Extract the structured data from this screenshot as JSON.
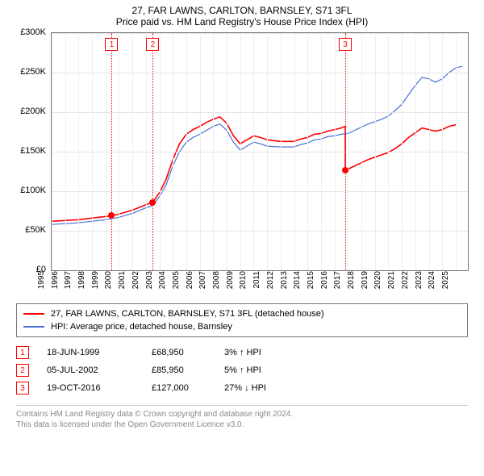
{
  "title_line1": "27, FAR LAWNS, CARLTON, BARNSLEY, S71 3FL",
  "title_line2": "Price paid vs. HM Land Registry's House Price Index (HPI)",
  "chart": {
    "type": "line",
    "background_color": "#ffffff",
    "grid_color": "#e5e5e5",
    "axis_color": "#777777",
    "x_range": [
      1995,
      2025.9
    ],
    "y_range": [
      0,
      300
    ],
    "y_ticks": [
      0,
      50,
      100,
      150,
      200,
      250,
      300
    ],
    "y_tick_labels": [
      "£0",
      "£50K",
      "£100K",
      "£150K",
      "£200K",
      "£250K",
      "£300K"
    ],
    "x_ticks": [
      1995,
      1996,
      1997,
      1998,
      1999,
      2000,
      2001,
      2002,
      2003,
      2004,
      2005,
      2006,
      2007,
      2008,
      2009,
      2010,
      2011,
      2012,
      2013,
      2014,
      2015,
      2016,
      2017,
      2018,
      2019,
      2020,
      2021,
      2022,
      2023,
      2024,
      2025
    ],
    "series": [
      {
        "name": "property",
        "label": "27, FAR LAWNS, CARLTON, BARNSLEY, S71 3FL (detached house)",
        "color": "#ff0000",
        "width": 1.6,
        "data": [
          [
            1995,
            62
          ],
          [
            1996,
            63
          ],
          [
            1997,
            64
          ],
          [
            1998,
            66
          ],
          [
            1999,
            68
          ],
          [
            1999.5,
            68.95
          ],
          [
            2000,
            71
          ],
          [
            2001,
            76
          ],
          [
            2002,
            83
          ],
          [
            2002.5,
            85.95
          ],
          [
            2003,
            98
          ],
          [
            2003.5,
            115
          ],
          [
            2004,
            140
          ],
          [
            2004.5,
            160
          ],
          [
            2005,
            172
          ],
          [
            2005.5,
            178
          ],
          [
            2006,
            182
          ],
          [
            2006.5,
            187
          ],
          [
            2007,
            191
          ],
          [
            2007.5,
            194
          ],
          [
            2008,
            186
          ],
          [
            2008.5,
            170
          ],
          [
            2009,
            160
          ],
          [
            2009.5,
            165
          ],
          [
            2010,
            170
          ],
          [
            2010.5,
            168
          ],
          [
            2011,
            165
          ],
          [
            2012,
            163
          ],
          [
            2013,
            163
          ],
          [
            2013.5,
            166
          ],
          [
            2014,
            168
          ],
          [
            2014.5,
            172
          ],
          [
            2015,
            173
          ],
          [
            2015.5,
            176
          ],
          [
            2016,
            178
          ],
          [
            2016.5,
            180
          ],
          [
            2016.8,
            182
          ],
          [
            2016.8001,
            127
          ],
          [
            2017,
            128
          ],
          [
            2017.5,
            132
          ],
          [
            2018,
            136
          ],
          [
            2018.5,
            140
          ],
          [
            2019,
            143
          ],
          [
            2019.5,
            146
          ],
          [
            2020,
            149
          ],
          [
            2020.5,
            154
          ],
          [
            2021,
            160
          ],
          [
            2021.5,
            168
          ],
          [
            2022,
            174
          ],
          [
            2022.5,
            180
          ],
          [
            2023,
            178
          ],
          [
            2023.5,
            176
          ],
          [
            2024,
            178
          ],
          [
            2024.5,
            182
          ],
          [
            2025,
            184
          ]
        ]
      },
      {
        "name": "hpi",
        "label": "HPI: Average price, detached house, Barnsley",
        "color": "#4a6fd8",
        "width": 1.2,
        "data": [
          [
            1995,
            58
          ],
          [
            1996,
            59
          ],
          [
            1997,
            60
          ],
          [
            1998,
            62
          ],
          [
            1999,
            64
          ],
          [
            2000,
            67
          ],
          [
            2001,
            72
          ],
          [
            2002,
            79
          ],
          [
            2002.5,
            82
          ],
          [
            2003,
            93
          ],
          [
            2003.5,
            108
          ],
          [
            2004,
            132
          ],
          [
            2004.5,
            150
          ],
          [
            2005,
            162
          ],
          [
            2005.5,
            168
          ],
          [
            2006,
            172
          ],
          [
            2006.5,
            177
          ],
          [
            2007,
            182
          ],
          [
            2007.5,
            185
          ],
          [
            2008,
            177
          ],
          [
            2008.5,
            162
          ],
          [
            2009,
            152
          ],
          [
            2009.5,
            157
          ],
          [
            2010,
            162
          ],
          [
            2010.5,
            160
          ],
          [
            2011,
            157
          ],
          [
            2012,
            156
          ],
          [
            2013,
            156
          ],
          [
            2013.5,
            159
          ],
          [
            2014,
            161
          ],
          [
            2014.5,
            165
          ],
          [
            2015,
            166
          ],
          [
            2015.5,
            169
          ],
          [
            2016,
            170
          ],
          [
            2016.5,
            172
          ],
          [
            2017,
            173
          ],
          [
            2017.5,
            177
          ],
          [
            2018,
            181
          ],
          [
            2018.5,
            185
          ],
          [
            2019,
            188
          ],
          [
            2019.5,
            191
          ],
          [
            2020,
            195
          ],
          [
            2020.5,
            202
          ],
          [
            2021,
            210
          ],
          [
            2021.5,
            222
          ],
          [
            2022,
            234
          ],
          [
            2022.5,
            244
          ],
          [
            2023,
            242
          ],
          [
            2023.5,
            238
          ],
          [
            2024,
            242
          ],
          [
            2024.5,
            250
          ],
          [
            2025,
            256
          ],
          [
            2025.5,
            258
          ]
        ]
      }
    ],
    "markers": [
      {
        "n": "1",
        "x": 1999.46
      },
      {
        "n": "2",
        "x": 2002.51
      },
      {
        "n": "3",
        "x": 2016.8
      }
    ],
    "sale_points": [
      {
        "x": 1999.46,
        "y": 68.95
      },
      {
        "x": 2002.51,
        "y": 85.95
      },
      {
        "x": 2016.8,
        "y": 127
      }
    ]
  },
  "legend": {
    "items": [
      {
        "color": "#ff0000",
        "label": "27, FAR LAWNS, CARLTON, BARNSLEY, S71 3FL (detached house)"
      },
      {
        "color": "#4a6fd8",
        "label": "HPI: Average price, detached house, Barnsley"
      }
    ]
  },
  "sales_table": {
    "rows": [
      {
        "n": "1",
        "date": "18-JUN-1999",
        "price": "£68,950",
        "delta": "3%",
        "arrow": "↑",
        "vs": "HPI"
      },
      {
        "n": "2",
        "date": "05-JUL-2002",
        "price": "£85,950",
        "delta": "5%",
        "arrow": "↑",
        "vs": "HPI"
      },
      {
        "n": "3",
        "date": "19-OCT-2016",
        "price": "£127,000",
        "delta": "27%",
        "arrow": "↓",
        "vs": "HPI"
      }
    ]
  },
  "attribution_line1": "Contains HM Land Registry data © Crown copyright and database right 2024.",
  "attribution_line2": "This data is licensed under the Open Government Licence v3.0."
}
